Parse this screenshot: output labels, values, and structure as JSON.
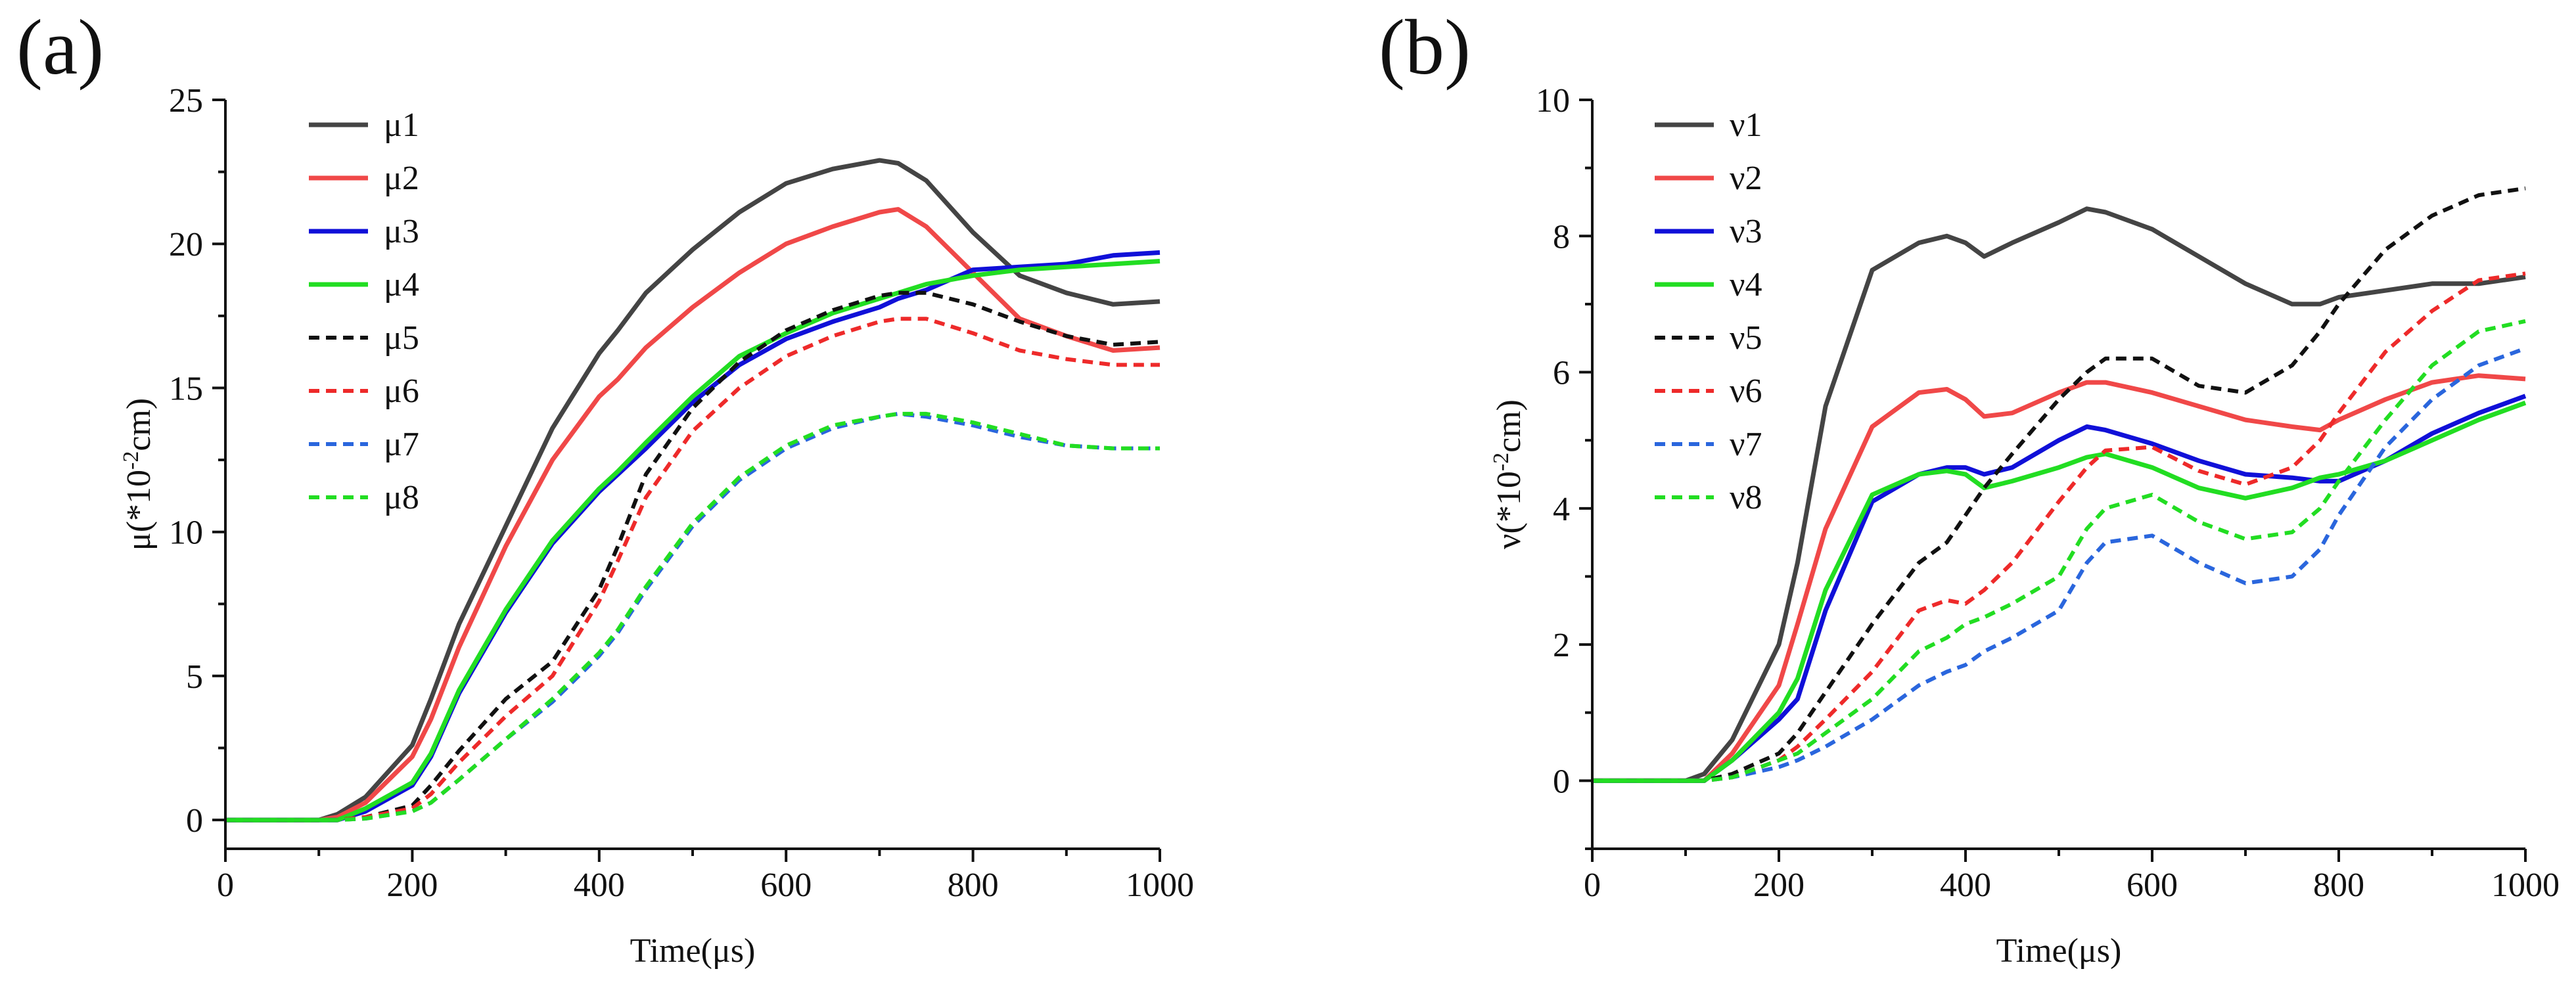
{
  "chart_data": [
    {
      "type": "line",
      "panel_label": "(a)",
      "xlabel": "Time(μs)",
      "ylabel_main": "μ(*10",
      "ylabel_sup": "-2",
      "ylabel_tail": "cm)",
      "xlim": [
        0,
        1000
      ],
      "ylim": [
        -1,
        25
      ],
      "xticks": [
        0,
        200,
        400,
        600,
        800,
        1000
      ],
      "yticks": [
        0,
        5,
        10,
        15,
        20,
        25
      ],
      "grid": false,
      "legend_position": "top-left",
      "x": [
        0,
        50,
        100,
        120,
        150,
        200,
        220,
        250,
        300,
        350,
        400,
        420,
        450,
        500,
        550,
        600,
        650,
        700,
        720,
        750,
        800,
        850,
        900,
        950,
        1000
      ],
      "series": [
        {
          "name": "μ1",
          "color": "#444444",
          "dash": "solid",
          "values": [
            0,
            0,
            0,
            0.2,
            0.8,
            2.6,
            4.2,
            6.8,
            10.2,
            13.6,
            16.2,
            17.0,
            18.3,
            19.8,
            21.1,
            22.1,
            22.6,
            22.9,
            22.8,
            22.2,
            20.4,
            18.9,
            18.3,
            17.9,
            18.0
          ]
        },
        {
          "name": "μ2",
          "color": "#f04848",
          "dash": "solid",
          "values": [
            0,
            0,
            0,
            0.1,
            0.6,
            2.2,
            3.5,
            6.0,
            9.5,
            12.5,
            14.7,
            15.3,
            16.4,
            17.8,
            19.0,
            20.0,
            20.6,
            21.1,
            21.2,
            20.6,
            19.0,
            17.4,
            16.8,
            16.3,
            16.4
          ]
        },
        {
          "name": "μ3",
          "color": "#1010d8",
          "dash": "solid",
          "values": [
            0,
            0,
            0,
            0,
            0.3,
            1.2,
            2.2,
            4.4,
            7.2,
            9.6,
            11.4,
            12.0,
            12.9,
            14.5,
            15.8,
            16.7,
            17.3,
            17.8,
            18.1,
            18.4,
            19.1,
            19.2,
            19.3,
            19.6,
            19.7
          ]
        },
        {
          "name": "μ4",
          "color": "#22dd22",
          "dash": "solid",
          "values": [
            0,
            0,
            0,
            0,
            0.4,
            1.3,
            2.3,
            4.5,
            7.3,
            9.7,
            11.5,
            12.1,
            13.1,
            14.7,
            16.1,
            16.9,
            17.6,
            18.1,
            18.3,
            18.6,
            18.9,
            19.1,
            19.2,
            19.3,
            19.4
          ]
        },
        {
          "name": "μ5",
          "color": "#111111",
          "dash": "dash",
          "values": [
            0,
            0,
            0,
            0,
            0.1,
            0.5,
            1.2,
            2.4,
            4.2,
            5.5,
            8.0,
            9.5,
            12.0,
            14.3,
            15.9,
            17.0,
            17.7,
            18.2,
            18.3,
            18.3,
            17.9,
            17.3,
            16.8,
            16.5,
            16.6
          ]
        },
        {
          "name": "μ6",
          "color": "#ee2a2a",
          "dash": "dash",
          "values": [
            0,
            0,
            0,
            0,
            0.1,
            0.4,
            0.9,
            2.0,
            3.6,
            5.0,
            7.6,
            9.0,
            11.2,
            13.5,
            15.0,
            16.1,
            16.8,
            17.3,
            17.4,
            17.4,
            16.9,
            16.3,
            16.0,
            15.8,
            15.8
          ]
        },
        {
          "name": "μ7",
          "color": "#2a66dd",
          "dash": "dash",
          "values": [
            0,
            0,
            0,
            0,
            0.05,
            0.3,
            0.6,
            1.4,
            2.8,
            4.1,
            5.7,
            6.5,
            8.0,
            10.2,
            11.8,
            12.9,
            13.6,
            14.0,
            14.1,
            14.0,
            13.7,
            13.3,
            13.0,
            12.9,
            12.9
          ]
        },
        {
          "name": "μ8",
          "color": "#22dd22",
          "dash": "dash",
          "values": [
            0,
            0,
            0,
            0,
            0.05,
            0.3,
            0.6,
            1.4,
            2.8,
            4.2,
            5.8,
            6.6,
            8.1,
            10.3,
            11.9,
            13.0,
            13.7,
            14.0,
            14.1,
            14.1,
            13.8,
            13.4,
            13.0,
            12.9,
            12.9
          ]
        }
      ]
    },
    {
      "type": "line",
      "panel_label": "(b)",
      "xlabel": "Time(μs)",
      "ylabel_main": "ν(*10",
      "ylabel_sup": "-2",
      "ylabel_tail": "cm)",
      "xlim": [
        0,
        1000
      ],
      "ylim": [
        -1,
        10
      ],
      "xticks": [
        0,
        200,
        400,
        600,
        800,
        1000
      ],
      "yticks": [
        0,
        2,
        4,
        6,
        8,
        10
      ],
      "grid": false,
      "legend_position": "top-left",
      "x": [
        0,
        50,
        100,
        120,
        150,
        200,
        220,
        250,
        300,
        350,
        380,
        400,
        420,
        450,
        500,
        530,
        550,
        600,
        650,
        700,
        750,
        780,
        800,
        850,
        900,
        950,
        1000
      ],
      "series": [
        {
          "name": "ν1",
          "color": "#444444",
          "dash": "solid",
          "values": [
            0,
            0,
            0,
            0.1,
            0.6,
            2.0,
            3.2,
            5.5,
            7.5,
            7.9,
            8.0,
            7.9,
            7.7,
            7.9,
            8.2,
            8.4,
            8.35,
            8.1,
            7.7,
            7.3,
            7.0,
            7.0,
            7.1,
            7.2,
            7.3,
            7.3,
            7.4
          ]
        },
        {
          "name": "ν2",
          "color": "#f04848",
          "dash": "solid",
          "values": [
            0,
            0,
            0,
            0,
            0.4,
            1.4,
            2.3,
            3.7,
            5.2,
            5.7,
            5.75,
            5.6,
            5.35,
            5.4,
            5.7,
            5.85,
            5.85,
            5.7,
            5.5,
            5.3,
            5.2,
            5.15,
            5.3,
            5.6,
            5.85,
            5.95,
            5.9
          ]
        },
        {
          "name": "ν3",
          "color": "#1010d8",
          "dash": "solid",
          "values": [
            0,
            0,
            0,
            0,
            0.3,
            0.9,
            1.2,
            2.5,
            4.1,
            4.5,
            4.6,
            4.6,
            4.5,
            4.6,
            5.0,
            5.2,
            5.15,
            4.95,
            4.7,
            4.5,
            4.45,
            4.4,
            4.4,
            4.7,
            5.1,
            5.4,
            5.65
          ]
        },
        {
          "name": "ν4",
          "color": "#22dd22",
          "dash": "solid",
          "values": [
            0,
            0,
            0,
            0,
            0.3,
            1.0,
            1.5,
            2.8,
            4.2,
            4.5,
            4.55,
            4.5,
            4.3,
            4.4,
            4.6,
            4.75,
            4.8,
            4.6,
            4.3,
            4.15,
            4.3,
            4.45,
            4.5,
            4.7,
            5.0,
            5.3,
            5.55
          ]
        },
        {
          "name": "ν5",
          "color": "#111111",
          "dash": "dash",
          "values": [
            0,
            0,
            0,
            0,
            0.1,
            0.4,
            0.7,
            1.3,
            2.3,
            3.2,
            3.5,
            3.9,
            4.3,
            4.8,
            5.6,
            6.0,
            6.2,
            6.2,
            5.8,
            5.7,
            6.1,
            6.6,
            7.0,
            7.8,
            8.3,
            8.6,
            8.7
          ]
        },
        {
          "name": "ν6",
          "color": "#ee2a2a",
          "dash": "dash",
          "values": [
            0,
            0,
            0,
            0,
            0.05,
            0.3,
            0.5,
            0.9,
            1.6,
            2.5,
            2.65,
            2.6,
            2.8,
            3.2,
            4.1,
            4.6,
            4.85,
            4.9,
            4.55,
            4.35,
            4.6,
            5.0,
            5.4,
            6.3,
            6.9,
            7.35,
            7.45
          ]
        },
        {
          "name": "ν7",
          "color": "#2a66dd",
          "dash": "dash",
          "values": [
            0,
            0,
            0,
            0,
            0.05,
            0.2,
            0.3,
            0.5,
            0.9,
            1.4,
            1.6,
            1.7,
            1.9,
            2.1,
            2.5,
            3.2,
            3.5,
            3.6,
            3.2,
            2.9,
            3.0,
            3.4,
            3.9,
            4.9,
            5.6,
            6.1,
            6.35
          ]
        },
        {
          "name": "ν8",
          "color": "#22dd22",
          "dash": "dash",
          "values": [
            0,
            0,
            0,
            0,
            0.05,
            0.3,
            0.4,
            0.7,
            1.2,
            1.9,
            2.1,
            2.3,
            2.4,
            2.6,
            3.0,
            3.7,
            4.0,
            4.2,
            3.8,
            3.55,
            3.65,
            4.0,
            4.4,
            5.3,
            6.1,
            6.6,
            6.75
          ]
        }
      ]
    }
  ]
}
